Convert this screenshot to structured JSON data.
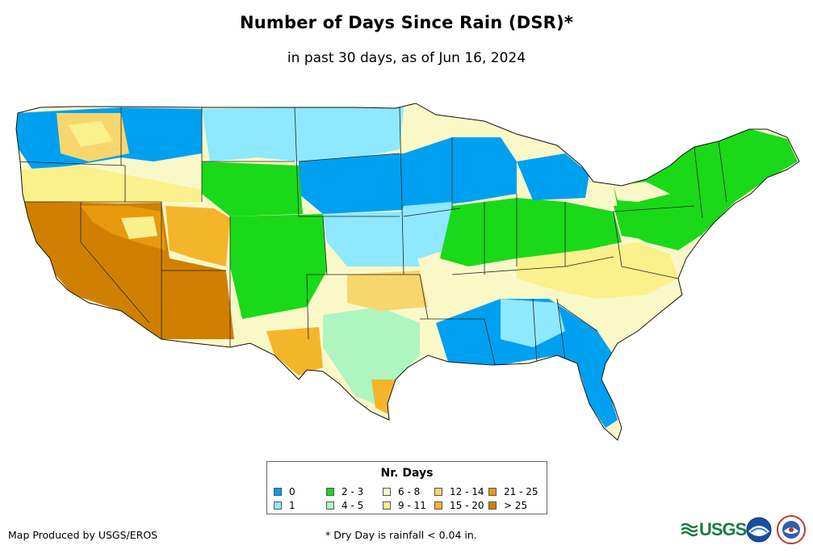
{
  "header": {
    "title": "Number of Days Since Rain (DSR)*",
    "subtitle": "in past 30 days, as of Jun 16, 2024"
  },
  "legend": {
    "title": "Nr. Days",
    "items": [
      {
        "label": "0",
        "color": "#00a0f0"
      },
      {
        "label": "1",
        "color": "#8ee8ff"
      },
      {
        "label": "2 - 3",
        "color": "#19d919"
      },
      {
        "label": "4 - 5",
        "color": "#aff5c0"
      },
      {
        "label": "6 - 8",
        "color": "#fbf8c8"
      },
      {
        "label": "9 - 11",
        "color": "#faf08c"
      },
      {
        "label": "12 - 14",
        "color": "#f8d66e"
      },
      {
        "label": "15 - 20",
        "color": "#f5b52a"
      },
      {
        "label": "21 - 25",
        "color": "#e89a0f"
      },
      {
        "label": "> 25",
        "color": "#d08000"
      }
    ]
  },
  "footer": {
    "credit": "Map Produced by USGS/EROS",
    "footnote": "* Dry Day is rainfall < 0.04 in.",
    "logos": [
      "USGS",
      "noaa-logo",
      "nws-logo"
    ]
  }
}
